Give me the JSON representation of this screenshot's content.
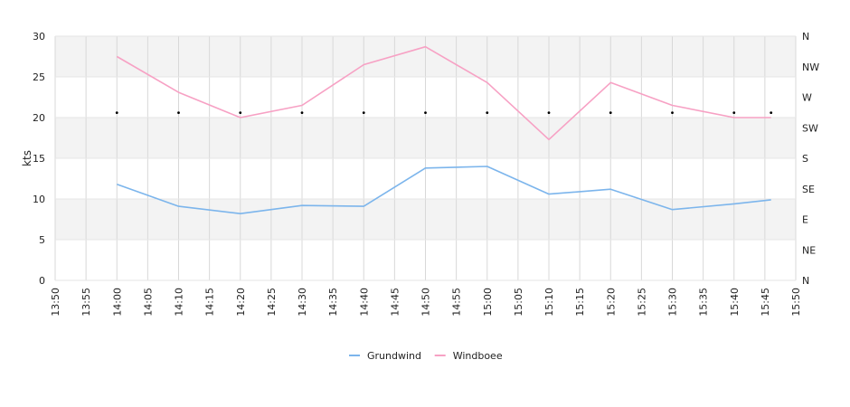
{
  "chart_data": {
    "type": "line",
    "ylabel": "kts",
    "ylim": [
      0,
      30
    ],
    "y_ticks": [
      "0",
      "5",
      "10",
      "15",
      "20",
      "25",
      "30"
    ],
    "x_range": [
      "13:50",
      "15:50"
    ],
    "x_ticks": [
      "13:50",
      "13:55",
      "14:00",
      "14:05",
      "14:10",
      "14:15",
      "14:20",
      "14:25",
      "14:30",
      "14:35",
      "14:40",
      "14:45",
      "14:50",
      "14:55",
      "15:00",
      "15:05",
      "15:10",
      "15:15",
      "15:20",
      "15:25",
      "15:30",
      "15:35",
      "15:40",
      "15:45",
      "15:50"
    ],
    "right_axis_ticks": [
      "N",
      "NE",
      "E",
      "SE",
      "S",
      "SW",
      "W",
      "NW",
      "N"
    ],
    "grid": true,
    "legend_position": "bottom-center",
    "series": [
      {
        "name": "Grundwind",
        "color": "#7cb5ec",
        "points": [
          {
            "x": "14:00",
            "y": 11.8
          },
          {
            "x": "14:10",
            "y": 9.1
          },
          {
            "x": "14:20",
            "y": 8.2
          },
          {
            "x": "14:30",
            "y": 9.2
          },
          {
            "x": "14:40",
            "y": 9.1
          },
          {
            "x": "14:50",
            "y": 13.8
          },
          {
            "x": "15:00",
            "y": 14.0
          },
          {
            "x": "15:10",
            "y": 10.6
          },
          {
            "x": "15:20",
            "y": 11.2
          },
          {
            "x": "15:30",
            "y": 8.7
          },
          {
            "x": "15:40",
            "y": 9.4
          },
          {
            "x": "15:46",
            "y": 9.9
          }
        ]
      },
      {
        "name": "Windboee",
        "color": "#f7a1c4",
        "points": [
          {
            "x": "14:00",
            "y": 27.5
          },
          {
            "x": "14:10",
            "y": 23.1
          },
          {
            "x": "14:20",
            "y": 20.0
          },
          {
            "x": "14:30",
            "y": 21.5
          },
          {
            "x": "14:40",
            "y": 26.5
          },
          {
            "x": "14:50",
            "y": 28.7
          },
          {
            "x": "15:00",
            "y": 24.3
          },
          {
            "x": "15:10",
            "y": 17.3
          },
          {
            "x": "15:20",
            "y": 24.3
          },
          {
            "x": "15:30",
            "y": 21.5
          },
          {
            "x": "15:40",
            "y": 20.0
          },
          {
            "x": "15:46",
            "y": 20.0
          }
        ]
      }
    ],
    "direction_markers": {
      "y": 20.6,
      "x": [
        "14:00",
        "14:10",
        "14:20",
        "14:30",
        "14:40",
        "14:50",
        "15:00",
        "15:10",
        "15:20",
        "15:30",
        "15:40",
        "15:46"
      ]
    }
  }
}
